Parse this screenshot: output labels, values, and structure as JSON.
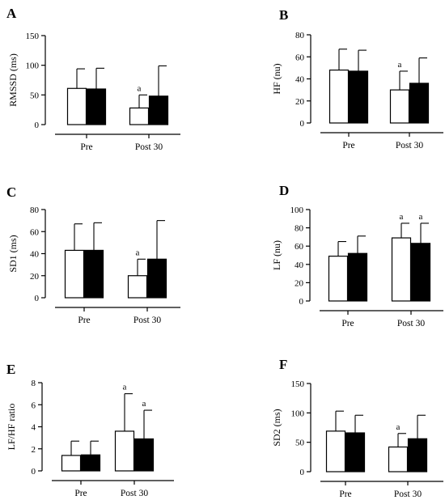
{
  "chart_data": [
    {
      "type": "bar",
      "panel": "A",
      "ylabel": "RMSSD (ms)",
      "categories": [
        "Pre",
        "Post 30"
      ],
      "series": [
        {
          "fill": "#ffffff",
          "values": [
            61,
            28
          ],
          "errors": [
            33,
            22
          ],
          "annotations": [
            "",
            "a"
          ]
        },
        {
          "fill": "#000000",
          "values": [
            60,
            48
          ],
          "errors": [
            35,
            51
          ],
          "annotations": [
            "",
            ""
          ]
        }
      ],
      "ylim": [
        0,
        150
      ],
      "yticks": [
        0,
        50,
        100,
        150
      ]
    },
    {
      "type": "bar",
      "panel": "B",
      "ylabel": "HF (nu)",
      "categories": [
        "Pre",
        "Post 30"
      ],
      "series": [
        {
          "fill": "#ffffff",
          "values": [
            48,
            30
          ],
          "errors": [
            19,
            17
          ],
          "annotations": [
            "",
            "a"
          ]
        },
        {
          "fill": "#000000",
          "values": [
            47,
            36
          ],
          "errors": [
            19,
            23
          ],
          "annotations": [
            "",
            ""
          ]
        }
      ],
      "ylim": [
        0,
        80
      ],
      "yticks": [
        0,
        20,
        40,
        60,
        80
      ]
    },
    {
      "type": "bar",
      "panel": "C",
      "ylabel": "SD1 (ms)",
      "categories": [
        "Pre",
        "Post 30"
      ],
      "series": [
        {
          "fill": "#ffffff",
          "values": [
            43,
            20
          ],
          "errors": [
            24,
            15
          ],
          "annotations": [
            "",
            "a"
          ]
        },
        {
          "fill": "#000000",
          "values": [
            43,
            35
          ],
          "errors": [
            25,
            35
          ],
          "annotations": [
            "",
            ""
          ]
        }
      ],
      "ylim": [
        0,
        80
      ],
      "yticks": [
        0,
        20,
        40,
        60,
        80
      ]
    },
    {
      "type": "bar",
      "panel": "D",
      "ylabel": "LF (nu)",
      "categories": [
        "Pre",
        "Post 30"
      ],
      "series": [
        {
          "fill": "#ffffff",
          "values": [
            49,
            69
          ],
          "errors": [
            16,
            16
          ],
          "annotations": [
            "",
            "a"
          ]
        },
        {
          "fill": "#000000",
          "values": [
            52,
            63
          ],
          "errors": [
            19,
            22
          ],
          "annotations": [
            "",
            "a"
          ]
        }
      ],
      "ylim": [
        0,
        100
      ],
      "yticks": [
        0,
        20,
        40,
        60,
        80,
        100
      ]
    },
    {
      "type": "bar",
      "panel": "E",
      "ylabel": "LF/HF ratio",
      "categories": [
        "Pre",
        "Post 30"
      ],
      "series": [
        {
          "fill": "#ffffff",
          "values": [
            1.4,
            3.6
          ],
          "errors": [
            1.3,
            3.4
          ],
          "annotations": [
            "",
            "a"
          ]
        },
        {
          "fill": "#000000",
          "values": [
            1.45,
            2.9
          ],
          "errors": [
            1.25,
            2.6
          ],
          "annotations": [
            "",
            "a"
          ]
        }
      ],
      "ylim": [
        0,
        8
      ],
      "yticks": [
        0,
        2,
        4,
        6,
        8
      ]
    },
    {
      "type": "bar",
      "panel": "F",
      "ylabel": "SD2 (ms)",
      "categories": [
        "Pre",
        "Post 30"
      ],
      "series": [
        {
          "fill": "#ffffff",
          "values": [
            69,
            42
          ],
          "errors": [
            34,
            23
          ],
          "annotations": [
            "",
            "a"
          ]
        },
        {
          "fill": "#000000",
          "values": [
            66,
            56
          ],
          "errors": [
            30,
            40
          ],
          "annotations": [
            "",
            ""
          ]
        }
      ],
      "ylim": [
        0,
        150
      ],
      "yticks": [
        0,
        50,
        100,
        150
      ]
    }
  ]
}
